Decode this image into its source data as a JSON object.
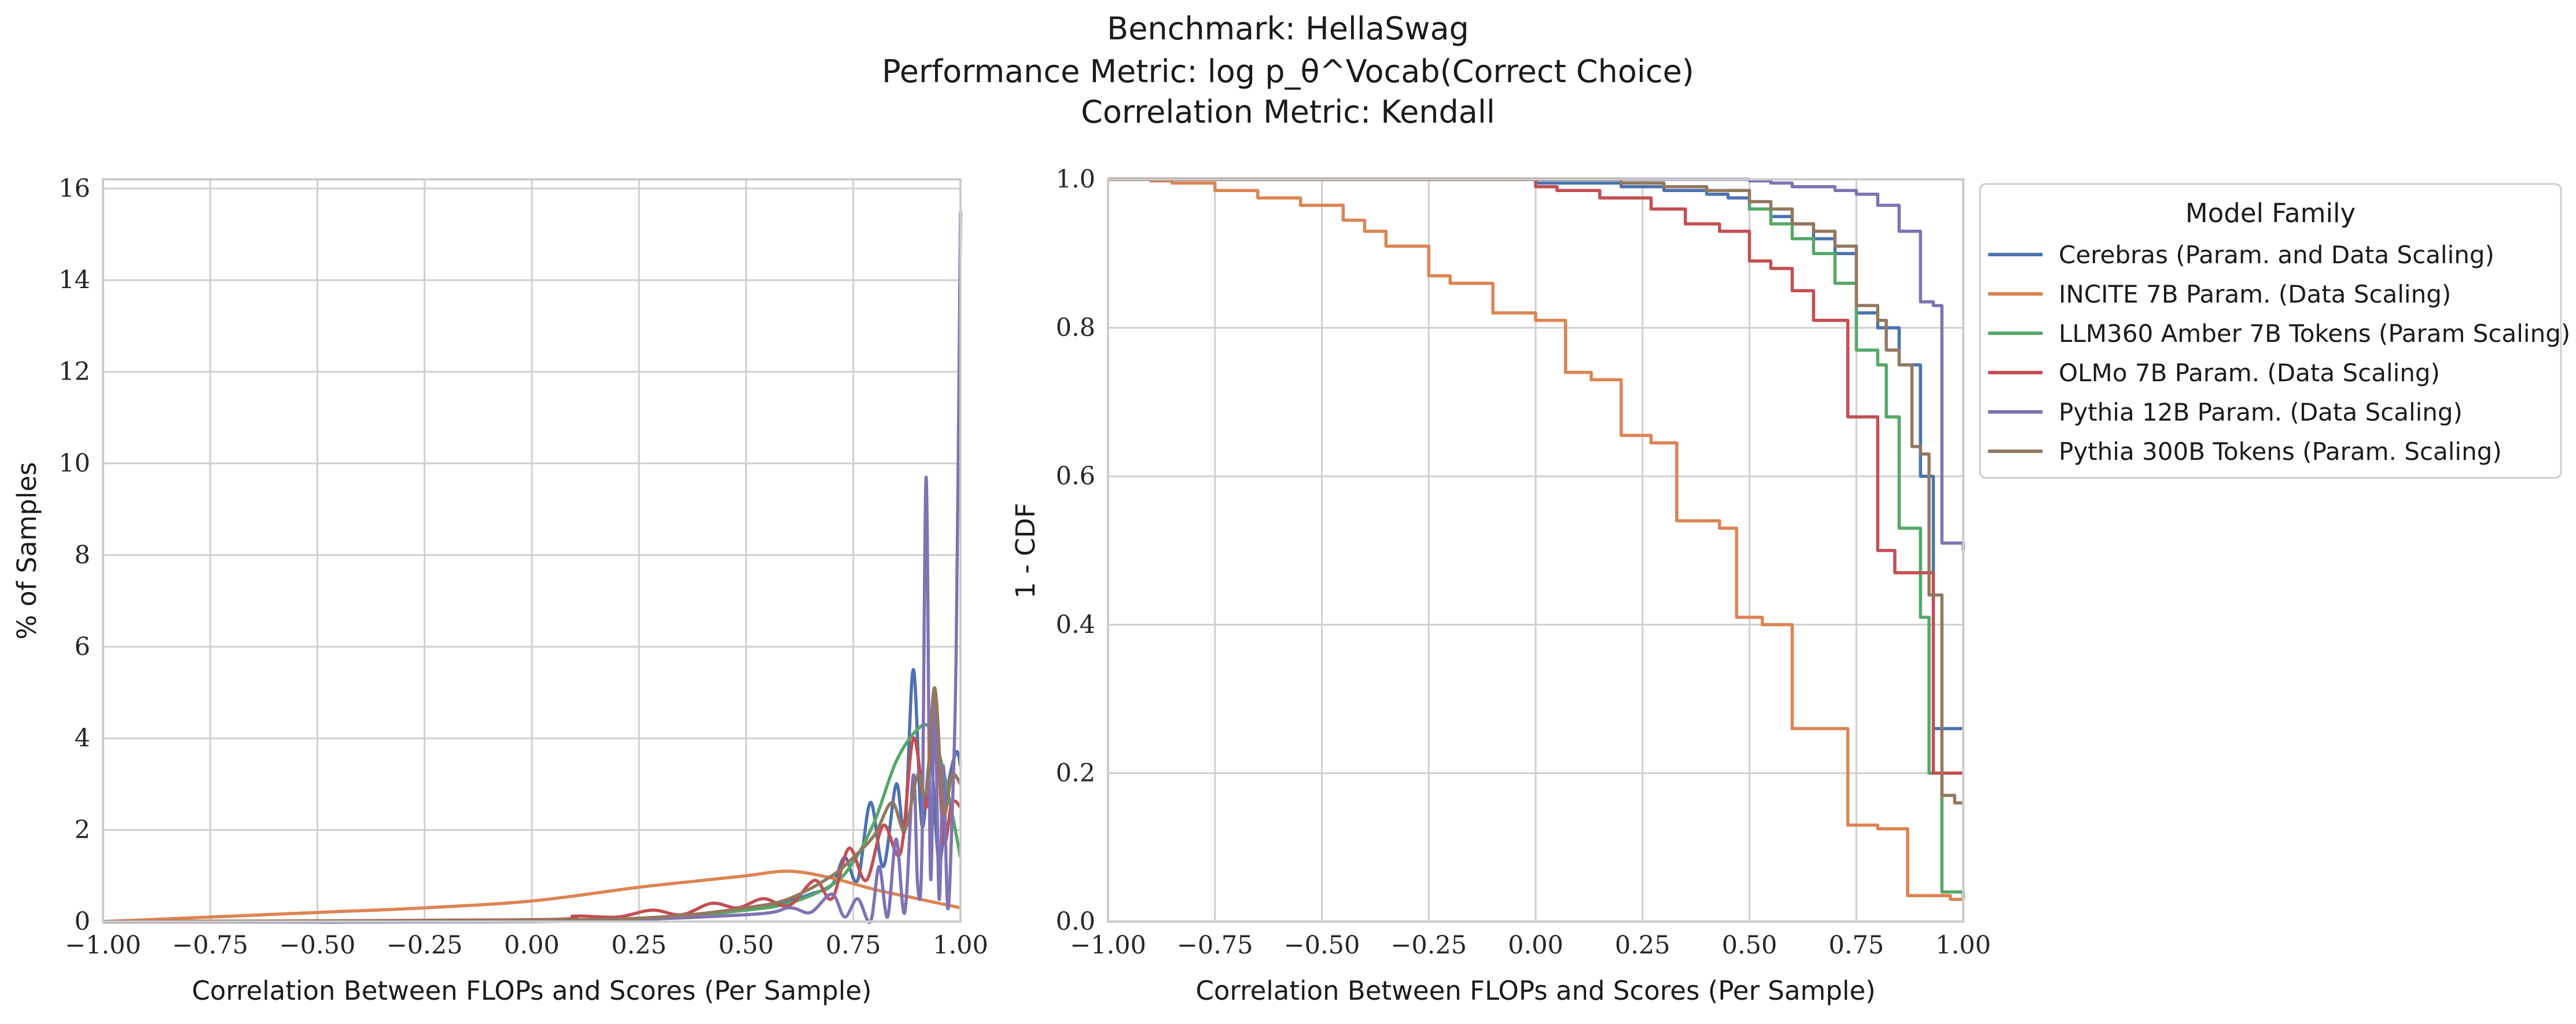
{
  "figure": {
    "title_line1": "Benchmark: HellaSwag",
    "title_line2": "Performance Metric: log p_θ^Vocab(Correct Choice)",
    "title_line3": "Correlation Metric: Kendall"
  },
  "legend": {
    "title": "Model Family",
    "placement": "outside right of right panel, top"
  },
  "chart_data": [
    {
      "type": "line",
      "subtype": "kde",
      "xlabel": "Correlation Between FLOPs and Scores (Per Sample)",
      "ylabel": "% of Samples",
      "xlim": [
        -1.0,
        1.0
      ],
      "ylim": [
        0,
        16.2
      ],
      "xticks": [
        -1.0,
        -0.75,
        -0.5,
        -0.25,
        0.0,
        0.25,
        0.5,
        0.75,
        1.0
      ],
      "xtick_labels": [
        "−1.00",
        "−0.75",
        "−0.50",
        "−0.25",
        "0.00",
        "0.25",
        "0.50",
        "0.75",
        "1.00"
      ],
      "yticks": [
        0,
        2,
        4,
        6,
        8,
        10,
        12,
        14,
        16
      ],
      "ytick_labels": [
        "0",
        "2",
        "4",
        "6",
        "8",
        "10",
        "12",
        "14",
        "16"
      ],
      "grid": true,
      "series": [
        {
          "name": "Cerebras (Param. and Data Scaling)",
          "color": "#4c72b0",
          "x": [
            -1.0,
            0.0,
            0.2,
            0.4,
            0.5,
            0.6,
            0.65,
            0.7,
            0.73,
            0.76,
            0.79,
            0.82,
            0.85,
            0.87,
            0.89,
            0.91,
            0.93,
            0.95,
            0.97,
            0.99,
            1.0
          ],
          "y": [
            0.0,
            0.02,
            0.05,
            0.15,
            0.3,
            0.45,
            0.6,
            0.8,
            1.4,
            0.9,
            2.6,
            1.2,
            3.0,
            2.0,
            5.5,
            2.1,
            3.6,
            1.3,
            2.9,
            3.7,
            3.4
          ]
        },
        {
          "name": "INCITE 7B Param. (Data Scaling)",
          "color": "#dd8452",
          "x": [
            -1.0,
            -0.75,
            -0.5,
            -0.25,
            0.0,
            0.25,
            0.4,
            0.5,
            0.6,
            0.7,
            0.8,
            0.9,
            1.0
          ],
          "y": [
            0.0,
            0.1,
            0.2,
            0.3,
            0.45,
            0.75,
            0.9,
            1.0,
            1.1,
            0.95,
            0.7,
            0.5,
            0.3
          ]
        },
        {
          "name": "LLM360 Amber 7B Tokens (Param Scaling)",
          "color": "#55a868",
          "x": [
            -1.0,
            0.0,
            0.3,
            0.5,
            0.6,
            0.7,
            0.75,
            0.8,
            0.85,
            0.9,
            0.93,
            0.96,
            1.0
          ],
          "y": [
            0.0,
            0.02,
            0.08,
            0.25,
            0.4,
            0.8,
            1.3,
            2.2,
            3.5,
            4.2,
            4.2,
            3.3,
            1.4
          ]
        },
        {
          "name": "OLMo 7B Param. (Data Scaling)",
          "color": "#c44e52",
          "x": [
            -1.0,
            0.0,
            0.1,
            0.2,
            0.28,
            0.35,
            0.42,
            0.48,
            0.54,
            0.6,
            0.66,
            0.7,
            0.74,
            0.78,
            0.82,
            0.86,
            0.89,
            0.92,
            0.94,
            0.96,
            0.98,
            1.0
          ],
          "y": [
            0.0,
            0.04,
            0.12,
            0.1,
            0.25,
            0.15,
            0.4,
            0.3,
            0.5,
            0.35,
            0.9,
            0.5,
            1.6,
            0.9,
            2.1,
            1.5,
            4.0,
            2.5,
            5.1,
            1.8,
            2.6,
            2.5
          ]
        },
        {
          "name": "Pythia 12B Param. (Data Scaling)",
          "color": "#8172b3",
          "x": [
            -1.0,
            0.0,
            0.5,
            0.6,
            0.65,
            0.7,
            0.73,
            0.76,
            0.79,
            0.81,
            0.83,
            0.85,
            0.87,
            0.89,
            0.9,
            0.91,
            0.92,
            0.93,
            0.94,
            0.95,
            0.96,
            0.97,
            0.98,
            0.99,
            1.0
          ],
          "y": [
            0.0,
            0.0,
            0.15,
            0.3,
            0.2,
            0.6,
            0.1,
            0.5,
            0.0,
            1.2,
            0.1,
            1.8,
            0.2,
            3.2,
            0.8,
            1.5,
            9.7,
            1.0,
            5.0,
            0.5,
            3.4,
            0.3,
            2.2,
            6.0,
            15.5
          ]
        },
        {
          "name": "Pythia 300B Tokens (Param. Scaling)",
          "color": "#937860",
          "x": [
            -1.0,
            0.0,
            0.3,
            0.5,
            0.6,
            0.7,
            0.75,
            0.8,
            0.84,
            0.87,
            0.9,
            0.92,
            0.94,
            0.96,
            0.98,
            1.0
          ],
          "y": [
            0.0,
            0.03,
            0.1,
            0.3,
            0.5,
            1.0,
            1.4,
            1.9,
            2.6,
            2.0,
            3.2,
            2.8,
            5.1,
            2.4,
            3.2,
            3.0
          ]
        }
      ]
    },
    {
      "type": "line",
      "subtype": "step",
      "xlabel": "Correlation Between FLOPs and Scores (Per Sample)",
      "ylabel": "1 - CDF",
      "xlim": [
        -1.0,
        1.0
      ],
      "ylim": [
        0.0,
        1.0
      ],
      "xticks": [
        -1.0,
        -0.75,
        -0.5,
        -0.25,
        0.0,
        0.25,
        0.5,
        0.75,
        1.0
      ],
      "xtick_labels": [
        "−1.00",
        "−0.75",
        "−0.50",
        "−0.25",
        "0.00",
        "0.25",
        "0.50",
        "0.75",
        "1.00"
      ],
      "yticks": [
        0.0,
        0.2,
        0.4,
        0.6,
        0.8,
        1.0
      ],
      "ytick_labels": [
        "0.0",
        "0.2",
        "0.4",
        "0.6",
        "0.8",
        "1.0"
      ],
      "grid": true,
      "series": [
        {
          "name": "Cerebras (Param. and Data Scaling)",
          "color": "#4c72b0",
          "x": [
            -1.0,
            -0.5,
            0.0,
            0.2,
            0.3,
            0.4,
            0.45,
            0.5,
            0.55,
            0.6,
            0.65,
            0.7,
            0.75,
            0.8,
            0.85,
            0.9,
            0.93,
            0.95,
            1.0
          ],
          "y": [
            1.0,
            1.0,
            0.995,
            0.99,
            0.985,
            0.98,
            0.975,
            0.96,
            0.95,
            0.94,
            0.92,
            0.9,
            0.82,
            0.8,
            0.75,
            0.6,
            0.26,
            0.26,
            0.26
          ]
        },
        {
          "name": "INCITE 7B Param. (Data Scaling)",
          "color": "#dd8452",
          "x": [
            -1.0,
            -0.9,
            -0.85,
            -0.75,
            -0.65,
            -0.55,
            -0.45,
            -0.4,
            -0.35,
            -0.25,
            -0.2,
            -0.1,
            0.0,
            0.07,
            0.13,
            0.2,
            0.27,
            0.33,
            0.43,
            0.47,
            0.53,
            0.6,
            0.73,
            0.8,
            0.87,
            0.97,
            1.0
          ],
          "y": [
            1.0,
            0.998,
            0.995,
            0.985,
            0.975,
            0.965,
            0.945,
            0.93,
            0.91,
            0.87,
            0.86,
            0.82,
            0.81,
            0.74,
            0.73,
            0.655,
            0.645,
            0.54,
            0.53,
            0.41,
            0.4,
            0.26,
            0.13,
            0.125,
            0.035,
            0.03,
            0.03
          ]
        },
        {
          "name": "LLM360 Amber 7B Tokens (Param Scaling)",
          "color": "#55a868",
          "x": [
            -1.0,
            0.0,
            0.2,
            0.3,
            0.4,
            0.5,
            0.55,
            0.6,
            0.65,
            0.7,
            0.75,
            0.8,
            0.82,
            0.85,
            0.9,
            0.92,
            0.95,
            1.0
          ],
          "y": [
            1.0,
            1.0,
            0.995,
            0.99,
            0.985,
            0.96,
            0.94,
            0.92,
            0.9,
            0.86,
            0.77,
            0.75,
            0.68,
            0.53,
            0.41,
            0.2,
            0.04,
            0.03
          ]
        },
        {
          "name": "OLMo 7B Param. (Data Scaling)",
          "color": "#c44e52",
          "x": [
            -1.0,
            0.0,
            0.05,
            0.15,
            0.27,
            0.35,
            0.43,
            0.5,
            0.55,
            0.6,
            0.65,
            0.73,
            0.75,
            0.8,
            0.84,
            0.9,
            0.93,
            1.0
          ],
          "y": [
            1.0,
            0.99,
            0.985,
            0.975,
            0.96,
            0.94,
            0.93,
            0.89,
            0.88,
            0.85,
            0.81,
            0.68,
            0.68,
            0.5,
            0.47,
            0.47,
            0.2,
            0.2
          ]
        },
        {
          "name": "Pythia 12B Param. (Data Scaling)",
          "color": "#8172b3",
          "x": [
            -1.0,
            0.0,
            0.3,
            0.5,
            0.55,
            0.6,
            0.7,
            0.75,
            0.8,
            0.85,
            0.9,
            0.93,
            0.95,
            1.0
          ],
          "y": [
            1.0,
            1.0,
            1.0,
            0.998,
            0.995,
            0.99,
            0.985,
            0.98,
            0.965,
            0.93,
            0.835,
            0.83,
            0.51,
            0.5
          ]
        },
        {
          "name": "Pythia 300B Tokens (Param. Scaling)",
          "color": "#937860",
          "x": [
            -1.0,
            0.0,
            0.2,
            0.3,
            0.4,
            0.5,
            0.55,
            0.6,
            0.65,
            0.7,
            0.75,
            0.8,
            0.82,
            0.85,
            0.88,
            0.9,
            0.92,
            0.95,
            0.98,
            1.0
          ],
          "y": [
            1.0,
            1.0,
            0.995,
            0.99,
            0.985,
            0.97,
            0.96,
            0.94,
            0.93,
            0.91,
            0.83,
            0.81,
            0.77,
            0.75,
            0.64,
            0.63,
            0.44,
            0.17,
            0.16,
            0.16
          ]
        }
      ]
    }
  ]
}
